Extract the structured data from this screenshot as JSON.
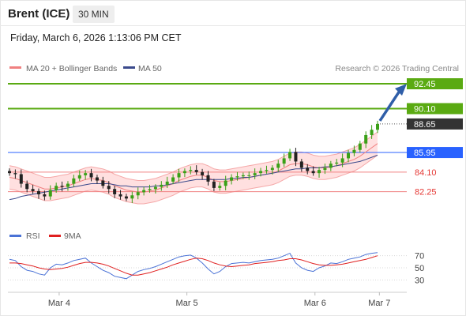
{
  "header": {
    "instrument": "Brent (ICE)",
    "interval": "30 MIN",
    "timestamp": "Friday, March 6, 2026 1:13:06 PM CET"
  },
  "legend": {
    "ma20_label": "MA 20 + Bollinger Bands",
    "ma50_label": "MA 50",
    "credit": "Research © 2026 Trading Central",
    "rsi_label": "RSI",
    "rsi_ma_label": "9MA"
  },
  "colors": {
    "bullish_level": "#5aaa12",
    "last_price": "#333333",
    "pivot": "#2962ff",
    "bearish_level": "#e53935",
    "ma20_band": "#ffd6d6",
    "ma50": "#3b4a8c",
    "rsi": "#4a72d6",
    "rsi_ma": "#e02020"
  },
  "chart_data": {
    "type": "line",
    "title": "Brent (ICE)",
    "interval": "30 MIN",
    "ylim": [
      80.8,
      93.2
    ],
    "x_ticks": [
      "Mar 4",
      "Mar 5",
      "Mar 6",
      "Mar 7"
    ],
    "levels": [
      {
        "value": 92.45,
        "label": "92.45",
        "kind": "resistance"
      },
      {
        "value": 90.1,
        "label": "90.10",
        "kind": "resistance"
      },
      {
        "value": 88.65,
        "label": "88.65",
        "kind": "last"
      },
      {
        "value": 85.95,
        "label": "85.95",
        "kind": "pivot"
      },
      {
        "value": 84.1,
        "label": "84.10",
        "kind": "support"
      },
      {
        "value": 82.25,
        "label": "82.25",
        "kind": "support"
      }
    ],
    "forecast_target": 92.45,
    "series": [
      {
        "name": "Price",
        "values": [
          84.0,
          83.9,
          83.0,
          82.5,
          82.3,
          82.0,
          81.8,
          82.4,
          82.8,
          82.7,
          83.0,
          83.5,
          83.8,
          84.0,
          83.6,
          83.3,
          82.8,
          82.5,
          82.0,
          81.8,
          81.6,
          81.9,
          82.2,
          82.4,
          82.5,
          82.7,
          82.9,
          83.2,
          83.6,
          84.0,
          84.2,
          84.3,
          84.1,
          83.8,
          83.2,
          82.6,
          82.8,
          83.3,
          83.6,
          83.7,
          83.8,
          83.8,
          84.0,
          84.2,
          84.3,
          84.5,
          84.9,
          85.4,
          86.0,
          85.1,
          84.5,
          84.2,
          84.0,
          84.3,
          84.5,
          84.9,
          85.0,
          85.4,
          85.9,
          86.2,
          86.8,
          87.6,
          88.1,
          88.65
        ]
      },
      {
        "name": "MA 20",
        "values": [
          83.6,
          83.5,
          83.3,
          83.1,
          82.9,
          82.7,
          82.5,
          82.5,
          82.6,
          82.7,
          82.8,
          83.0,
          83.2,
          83.4,
          83.5,
          83.4,
          83.3,
          83.1,
          82.8,
          82.6,
          82.4,
          82.3,
          82.2,
          82.2,
          82.3,
          82.4,
          82.6,
          82.8,
          83.0,
          83.3,
          83.5,
          83.7,
          83.8,
          83.8,
          83.6,
          83.3,
          83.2,
          83.2,
          83.3,
          83.4,
          83.5,
          83.6,
          83.7,
          83.8,
          83.9,
          84.0,
          84.2,
          84.5,
          84.8,
          84.9,
          84.9,
          84.8,
          84.6,
          84.5,
          84.5,
          84.6,
          84.7,
          84.9,
          85.1,
          85.3,
          85.6,
          86.0,
          86.4,
          86.8
        ]
      },
      {
        "name": "MA 50",
        "values": [
          81.5,
          81.6,
          81.8,
          81.9,
          82.0,
          82.1,
          82.2,
          82.3,
          82.4,
          82.5,
          82.6,
          82.7,
          82.8,
          82.9,
          83.0,
          83.0,
          83.0,
          83.0,
          82.9,
          82.8,
          82.8,
          82.7,
          82.7,
          82.7,
          82.7,
          82.8,
          82.8,
          82.9,
          83.0,
          83.1,
          83.2,
          83.3,
          83.4,
          83.4,
          83.4,
          83.4,
          83.4,
          83.4,
          83.5,
          83.5,
          83.6,
          83.6,
          83.7,
          83.8,
          83.9,
          84.0,
          84.1,
          84.2,
          84.3,
          84.4,
          84.4,
          84.5,
          84.5,
          84.5,
          84.6,
          84.6,
          84.7,
          84.8,
          84.9,
          85.0,
          85.1,
          85.3,
          85.5,
          85.7
        ]
      }
    ],
    "rsi": {
      "ylim": [
        20,
        80
      ],
      "ticks": [
        70,
        50,
        30
      ],
      "series": [
        {
          "name": "RSI",
          "values": [
            64,
            62,
            52,
            46,
            44,
            40,
            38,
            50,
            56,
            55,
            58,
            62,
            64,
            66,
            58,
            52,
            46,
            42,
            36,
            34,
            32,
            38,
            44,
            47,
            49,
            52,
            56,
            60,
            64,
            68,
            70,
            71,
            66,
            58,
            48,
            40,
            44,
            52,
            57,
            58,
            59,
            58,
            60,
            62,
            63,
            64,
            66,
            70,
            74,
            58,
            50,
            46,
            44,
            50,
            53,
            58,
            57,
            60,
            64,
            66,
            68,
            72,
            74,
            75
          ]
        },
        {
          "name": "9MA",
          "values": [
            58,
            58,
            57,
            55,
            53,
            50,
            48,
            47,
            48,
            49,
            51,
            54,
            57,
            59,
            59,
            58,
            56,
            53,
            49,
            45,
            41,
            38,
            38,
            40,
            42,
            45,
            48,
            51,
            55,
            58,
            61,
            64,
            66,
            65,
            62,
            58,
            55,
            53,
            52,
            53,
            54,
            55,
            57,
            58,
            59,
            60,
            62,
            63,
            65,
            65,
            63,
            60,
            57,
            55,
            54,
            54,
            55,
            56,
            58,
            60,
            62,
            64,
            67,
            70
          ]
        }
      ]
    }
  }
}
